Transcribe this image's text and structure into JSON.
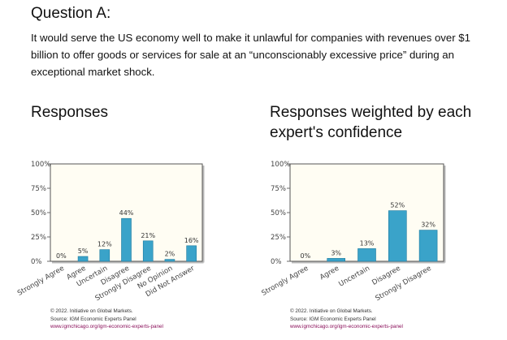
{
  "question": {
    "title": "Question A:",
    "text": "It would serve the US economy well to make it unlawful for companies with revenues over $1 billion to offer goods or services for sale at an “unconscionably excessive price” during an exceptional market shock."
  },
  "panels": [
    {
      "title": "Responses",
      "credits": {
        "line1": "© 2022. Initiative on Global Markets.",
        "line2": "Source: IGM Economic Experts Panel",
        "line3": "www.igmchicago.org/igm-economic-experts-panel"
      }
    },
    {
      "title": "Responses weighted by each expert's confidence",
      "credits": {
        "line1": "© 2022. Initiative on Global Markets.",
        "line2": "Source: IGM Economic Experts Panel",
        "line3": "www.igmchicago.org/igm-economic-experts-panel"
      }
    }
  ],
  "colors": {
    "bar": "#3aa3c9",
    "bar_edge": "#1b7aa0",
    "plot_bg": "#fffdf3",
    "axis": "#6a6a6a",
    "credit_url": "#8a0f5a"
  },
  "chart_data": [
    {
      "type": "bar",
      "title": "Responses",
      "categories": [
        "Strongly Agree",
        "Agree",
        "Uncertain",
        "Disagree",
        "Strongly Disagree",
        "No Opinion",
        "Did Not Answer"
      ],
      "values": [
        0,
        5,
        12,
        44,
        21,
        2,
        16
      ],
      "value_labels": [
        "0%",
        "5%",
        "12%",
        "44%",
        "21%",
        "2%",
        "16%"
      ],
      "yticks": [
        "0%",
        "25%",
        "50%",
        "75%",
        "100%"
      ],
      "ylim": [
        0,
        100
      ],
      "grid": false,
      "legend": "none"
    },
    {
      "type": "bar",
      "title": "Responses weighted by each expert's confidence",
      "categories": [
        "Strongly Agree",
        "Agree",
        "Uncertain",
        "Disagree",
        "Strongly Disagree"
      ],
      "values": [
        0,
        3,
        13,
        52,
        32
      ],
      "value_labels": [
        "0%",
        "3%",
        "13%",
        "52%",
        "32%"
      ],
      "yticks": [
        "0%",
        "25%",
        "50%",
        "75%",
        "100%"
      ],
      "ylim": [
        0,
        100
      ],
      "grid": false,
      "legend": "none"
    }
  ]
}
